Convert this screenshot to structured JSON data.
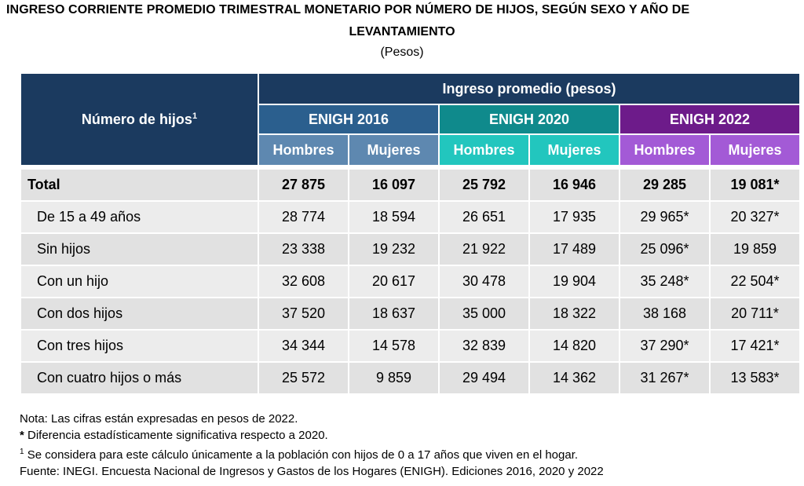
{
  "title": {
    "line1": "INGRESO CORRIENTE PROMEDIO TRIMESTRAL MONETARIO POR NÚMERO DE HIJOS, SEGÚN SEXO Y AÑO DE",
    "line2": "LEVANTAMIENTO",
    "line3": "(Pesos)"
  },
  "table": {
    "row_header": "Número de hijos",
    "row_header_sup": "1",
    "group_header": "Ingreso promedio (pesos)",
    "years": [
      "ENIGH 2016",
      "ENIGH 2020",
      "ENIGH 2022"
    ],
    "sexes": [
      "Hombres",
      "Mujeres",
      "Hombres",
      "Mujeres",
      "Hombres",
      "Mujeres"
    ],
    "rows": [
      {
        "label": "Total",
        "values": [
          "27 875",
          "16 097",
          "25 792",
          "16 946",
          "29 285",
          "19 081*"
        ]
      },
      {
        "label": "De 15 a 49 años",
        "values": [
          "28 774",
          "18 594",
          "26 651",
          "17 935",
          "29 965*",
          "20 327*"
        ]
      },
      {
        "label": "Sin hijos",
        "values": [
          "23 338",
          "19 232",
          "21 922",
          "17 489",
          "25 096*",
          "19 859"
        ]
      },
      {
        "label": "Con un hijo",
        "values": [
          "32 608",
          "20 617",
          "30 478",
          "19 904",
          "35 248*",
          "22 504*"
        ]
      },
      {
        "label": "Con dos hijos",
        "values": [
          "37 520",
          "18 637",
          "35 000",
          "18 322",
          "38 168",
          "20 711*"
        ]
      },
      {
        "label": "Con tres hijos",
        "values": [
          "34 344",
          "14 578",
          "32 839",
          "14 820",
          "37 290*",
          "17 421*"
        ]
      },
      {
        "label": "Con cuatro hijos o más",
        "values": [
          "25 572",
          "9 859",
          "29 494",
          "14 362",
          "31 267*",
          "13 583*"
        ]
      }
    ]
  },
  "notes": {
    "note": "Nota: Las cifras están expresadas en pesos de 2022.",
    "asterisk": "*",
    "asterisk_text": " Diferencia estadísticamente significativa respecto a 2020.",
    "footnote_sup": "1",
    "footnote_text": " Se considera para este cálculo únicamente a la población con hijos de 0 a 17 años que viven en el hogar.",
    "source": "Fuente: INEGI. Encuesta Nacional de Ingresos y Gastos de los Hogares (ENIGH). Ediciones 2016, 2020 y 2022"
  },
  "colors": {
    "header_navy": "#1b3a5f",
    "enigh2016": "#2b5f8e",
    "enigh2016_light": "#5e88b0",
    "enigh2020": "#0f8a8c",
    "enigh2020_light": "#22c6be",
    "enigh2022": "#6d1b8a",
    "enigh2022_light": "#a35ad6",
    "row_band_dark": "#e1e1e1",
    "row_band_light": "#ececec"
  }
}
